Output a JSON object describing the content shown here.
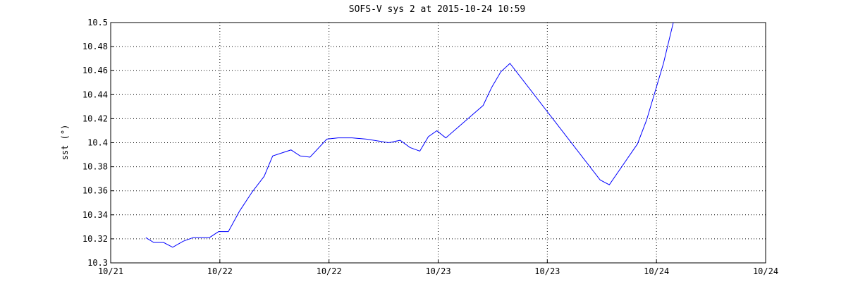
{
  "chart_data": {
    "type": "line",
    "title": "SOFS-V sys 2 at 2015-10-24 10:59",
    "y_label": "sst (°)",
    "xlim": [
      21,
      24
    ],
    "xticks": [
      {
        "value": 21,
        "label": "10/21"
      },
      {
        "value": 21.5,
        "label": "10/22"
      },
      {
        "value": 22,
        "label": "10/22"
      },
      {
        "value": 22.5,
        "label": "10/23"
      },
      {
        "value": 23,
        "label": "10/23"
      },
      {
        "value": 23.5,
        "label": "10/24"
      },
      {
        "value": 24,
        "label": "10/24"
      }
    ],
    "ylim": [
      10.3,
      10.5
    ],
    "yticks": [
      10.3,
      10.32,
      10.34,
      10.36,
      10.38,
      10.4,
      10.42,
      10.44,
      10.46,
      10.48,
      10.5
    ],
    "grid": true,
    "series": [
      {
        "color": "#0000ff",
        "x": [
          21.161,
          21.197,
          21.242,
          21.284,
          21.332,
          21.377,
          21.452,
          21.494,
          21.539,
          21.59,
          21.648,
          21.703,
          21.742,
          21.826,
          21.868,
          21.913,
          21.99,
          22.042,
          22.106,
          22.171,
          22.274,
          22.326,
          22.371,
          22.416,
          22.455,
          22.494,
          22.535,
          22.706,
          22.745,
          22.787,
          22.829,
          23.242,
          23.284,
          23.413,
          23.455,
          23.532,
          23.577
        ],
        "values": [
          10.321,
          10.317,
          10.317,
          10.313,
          10.318,
          10.321,
          10.321,
          10.326,
          10.326,
          10.343,
          10.359,
          10.372,
          10.389,
          10.394,
          10.389,
          10.388,
          10.403,
          10.404,
          10.404,
          10.403,
          10.4,
          10.402,
          10.396,
          10.393,
          10.405,
          10.41,
          10.404,
          10.431,
          10.446,
          10.459,
          10.466,
          10.369,
          10.365,
          10.399,
          10.419,
          10.466,
          10.5
        ]
      }
    ]
  }
}
